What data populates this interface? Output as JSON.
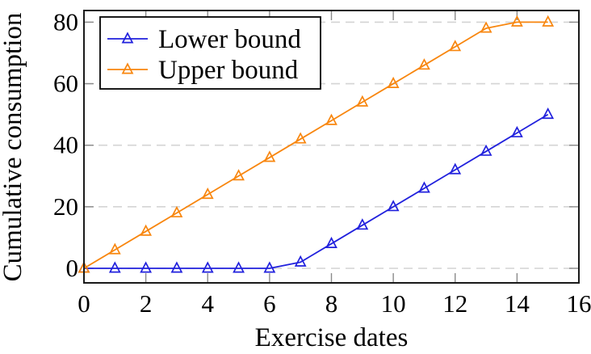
{
  "chart_data": {
    "type": "line",
    "title": "",
    "xlabel": "Exercise dates",
    "ylabel": "Cumulative consumption",
    "x": [
      0,
      1,
      2,
      3,
      4,
      5,
      6,
      7,
      8,
      9,
      10,
      11,
      12,
      13,
      14,
      15
    ],
    "series": [
      {
        "name": "Lower bound",
        "color": "#2121dd",
        "marker": "triangle-open",
        "values": [
          0,
          0,
          0,
          0,
          0,
          0,
          0,
          2,
          8,
          14,
          20,
          26,
          32,
          38,
          44,
          50
        ]
      },
      {
        "name": "Upper bound",
        "color": "#f8860e",
        "marker": "triangle-open",
        "values": [
          0,
          6,
          12,
          18,
          24,
          30,
          36,
          42,
          48,
          54,
          60,
          66,
          72,
          78,
          80,
          80
        ]
      }
    ],
    "xlim": [
      0,
      16
    ],
    "ylim": [
      0,
      80
    ],
    "x_ticks": [
      0,
      2,
      4,
      6,
      8,
      10,
      12,
      14,
      16
    ],
    "y_ticks": [
      0,
      20,
      40,
      60,
      80
    ],
    "grid": "horizontal-dashed",
    "legend_position": "top-left"
  },
  "colors": {
    "background": "#ffffff",
    "axis_frame": "#1a1a1a",
    "tick_mark": "#8a8a8a",
    "gridline": "#d4d4d4",
    "legend_border": "#000000",
    "legend_background": "#ffffff",
    "text": "#000000"
  }
}
